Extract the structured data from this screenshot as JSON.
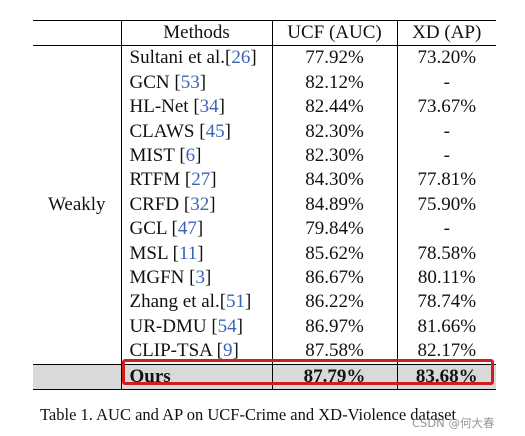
{
  "table": {
    "headers": [
      "",
      "Methods",
      "UCF (AUC)",
      "XD (AP)"
    ],
    "group_label": "Weakly",
    "rows": [
      {
        "name": "Sultani et al.",
        "ref": "26",
        "ucf": "77.92%",
        "xd": "73.20%"
      },
      {
        "name": "GCN ",
        "ref": "53",
        "ucf": "82.12%",
        "xd": "-"
      },
      {
        "name": "HL-Net ",
        "ref": "34",
        "ucf": "82.44%",
        "xd": "73.67%"
      },
      {
        "name": "CLAWS ",
        "ref": "45",
        "ucf": "82.30%",
        "xd": "-"
      },
      {
        "name": "MIST ",
        "ref": "6",
        "ucf": "82.30%",
        "xd": "-"
      },
      {
        "name": "RTFM ",
        "ref": "27",
        "ucf": "84.30%",
        "xd": "77.81%"
      },
      {
        "name": "CRFD ",
        "ref": "32",
        "ucf": "84.89%",
        "xd": "75.90%"
      },
      {
        "name": "GCL ",
        "ref": "47",
        "ucf": "79.84%",
        "xd": "-"
      },
      {
        "name": "MSL ",
        "ref": "11",
        "ucf": "85.62%",
        "xd": "78.58%"
      },
      {
        "name": "MGFN ",
        "ref": "3",
        "ucf": "86.67%",
        "xd": "80.11%"
      },
      {
        "name": "Zhang et al.",
        "ref": "51",
        "ucf": "86.22%",
        "xd": "78.74%"
      },
      {
        "name": "UR-DMU ",
        "ref": "54",
        "ucf": "86.97%",
        "xd": "81.66%"
      },
      {
        "name": "CLIP-TSA ",
        "ref": "9",
        "ucf": "87.58%",
        "xd": "82.17%"
      }
    ],
    "ours": {
      "name": "Ours",
      "ucf": "87.79%",
      "xd": "83.68%"
    }
  },
  "caption": "Table 1. AUC and AP on UCF-Crime and XD-Violence dataset",
  "watermark": "CSDN @何大春",
  "colors": {
    "reference_link": "#3b63b5",
    "highlight_border": "#d01d1d",
    "ours_row_bg": "#d9d9d9"
  }
}
